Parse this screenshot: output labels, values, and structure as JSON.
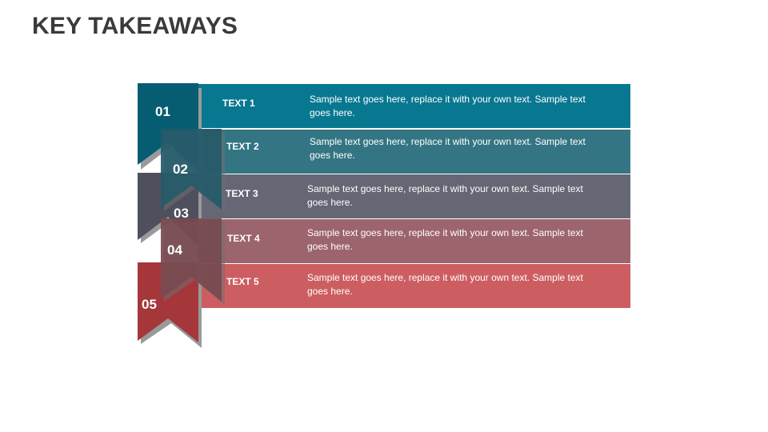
{
  "title": "KEY TAKEAWAYS",
  "items": [
    {
      "number": "01",
      "label": "TEXT 1",
      "text": "Sample text goes here, replace it with your own text. Sample text goes here.",
      "color": "#087891"
    },
    {
      "number": "02",
      "label": "TEXT 2",
      "text": "Sample text goes here, replace it with your own text. Sample text goes here.",
      "color": "#337583"
    },
    {
      "number": "03",
      "label": "TEXT 3",
      "text": "Sample text goes here, replace it with your own text. Sample text goes here.",
      "color": "#656775"
    },
    {
      "number": "04",
      "label": "TEXT 4",
      "text": "Sample text goes here, replace it with your own text. Sample text goes here.",
      "color": "#9c646c"
    },
    {
      "number": "05",
      "label": "TEXT 5",
      "text": "Sample text goes here, replace it with your own text. Sample text goes here.",
      "color": "#cc5e61"
    }
  ]
}
